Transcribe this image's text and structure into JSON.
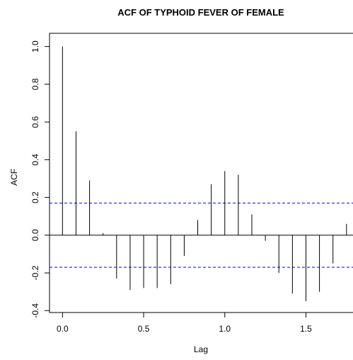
{
  "chart_data": {
    "type": "acf",
    "title": "ACF OF TYPHOID FEVER OF FEMALE",
    "x_label": "Lag",
    "y_label": "ACF",
    "x": [
      0,
      0.0833,
      0.1667,
      0.25,
      0.3333,
      0.4167,
      0.5,
      0.5833,
      0.6667,
      0.75,
      0.8333,
      0.9167,
      1.0,
      1.0833,
      1.1667,
      1.25,
      1.3333,
      1.4167,
      1.5,
      1.5833,
      1.6667,
      1.75
    ],
    "values": [
      1.0,
      0.55,
      0.29,
      0.01,
      -0.23,
      -0.29,
      -0.28,
      -0.28,
      -0.26,
      -0.11,
      0.08,
      0.27,
      0.34,
      0.32,
      0.11,
      -0.03,
      -0.2,
      -0.31,
      -0.35,
      -0.3,
      -0.15,
      0.06
    ],
    "color": "#000000",
    "ci_lines": [
      0.17,
      -0.17
    ],
    "ci_color": "#0000ff",
    "xlim": [
      -0.08,
      1.79
    ],
    "ylim": [
      -0.41,
      1.07
    ],
    "xticks": [
      {
        "value": 0,
        "label": "0.0"
      },
      0.5,
      {
        "value": 1,
        "label": "1.0"
      },
      1.5
    ],
    "yticks": [
      -0.4,
      -0.2,
      {
        "value": 0,
        "label": "0.0"
      },
      0.2,
      0.4,
      0.6,
      0.8,
      {
        "value": 1,
        "label": "1.0"
      }
    ]
  }
}
